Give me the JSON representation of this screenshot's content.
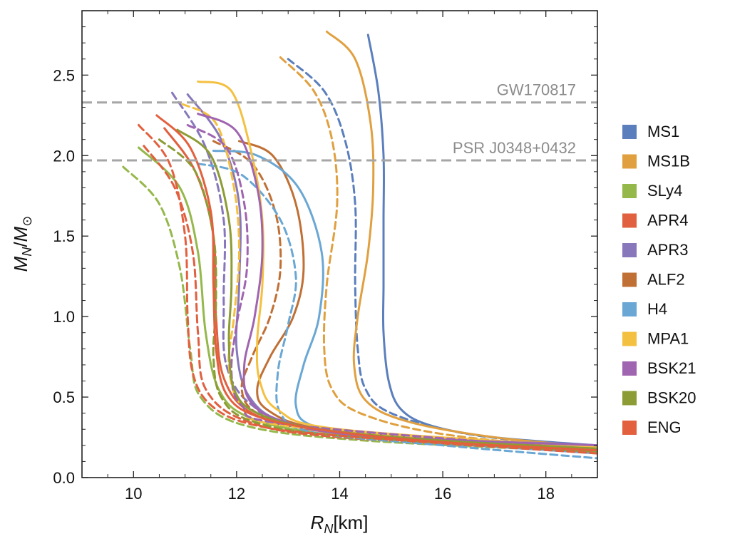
{
  "chart_data": {
    "type": "line",
    "xlabel_main": "R",
    "xlabel_sub": "N",
    "xlabel_unit": "[km]",
    "ylabel_main": "M",
    "ylabel_sub": "N",
    "ylabel_sep": "/",
    "ylabel_den": "M",
    "ylabel_den_sub": "⊙",
    "xlim": [
      9,
      19
    ],
    "ylim": [
      0,
      2.9
    ],
    "xticks": [
      10,
      12,
      14,
      16,
      18
    ],
    "yticks": [
      0.0,
      0.5,
      1.0,
      1.5,
      2.0,
      2.5
    ],
    "xtick_labels": [
      "10",
      "12",
      "14",
      "16",
      "18"
    ],
    "ytick_labels": [
      "0.0",
      "0.5",
      "1.0",
      "1.5",
      "2.0",
      "2.5"
    ],
    "legend_position": "right",
    "reference_lines": [
      {
        "label": "GW170817",
        "y": 2.33,
        "color": "#a6a6a6"
      },
      {
        "label": "PSR J0348+0432",
        "y": 1.97,
        "color": "#a6a6a6"
      }
    ],
    "series": [
      {
        "name": "MS1",
        "color": "#5b7fbd",
        "solid": [
          [
            14.55,
            2.75
          ],
          [
            14.75,
            2.4
          ],
          [
            14.85,
            2.0
          ],
          [
            14.85,
            1.6
          ],
          [
            14.85,
            1.2
          ],
          [
            14.85,
            0.9
          ],
          [
            14.95,
            0.6
          ],
          [
            15.2,
            0.42
          ],
          [
            15.8,
            0.32
          ],
          [
            17,
            0.25
          ],
          [
            19,
            0.2
          ]
        ],
        "dashed": [
          [
            13,
            2.6
          ],
          [
            13.7,
            2.4
          ],
          [
            14.1,
            2.1
          ],
          [
            14.3,
            1.7
          ],
          [
            14.3,
            1.2
          ],
          [
            14.35,
            0.8
          ],
          [
            14.5,
            0.55
          ],
          [
            15,
            0.4
          ],
          [
            16.5,
            0.27
          ],
          [
            19,
            0.18
          ]
        ]
      },
      {
        "name": "MS1B",
        "color": "#e0a040",
        "solid": [
          [
            13.75,
            2.77
          ],
          [
            14.3,
            2.6
          ],
          [
            14.6,
            2.2
          ],
          [
            14.65,
            1.8
          ],
          [
            14.55,
            1.4
          ],
          [
            14.35,
            1.0
          ],
          [
            14.28,
            0.7
          ],
          [
            14.5,
            0.48
          ],
          [
            15.3,
            0.35
          ],
          [
            17,
            0.25
          ],
          [
            19,
            0.19
          ]
        ],
        "dashed": [
          [
            12.85,
            2.61
          ],
          [
            13.5,
            2.4
          ],
          [
            13.85,
            2.1
          ],
          [
            13.95,
            1.7
          ],
          [
            13.75,
            1.2
          ],
          [
            13.7,
            0.8
          ],
          [
            13.85,
            0.55
          ],
          [
            14.4,
            0.4
          ],
          [
            16,
            0.27
          ],
          [
            19,
            0.17
          ]
        ]
      },
      {
        "name": "SLy4",
        "color": "#95b84b",
        "solid": [
          [
            10.1,
            2.05
          ],
          [
            10.9,
            1.8
          ],
          [
            11.25,
            1.4
          ],
          [
            11.4,
            0.9
          ],
          [
            11.65,
            0.55
          ],
          [
            12.2,
            0.38
          ],
          [
            13.5,
            0.28
          ],
          [
            16,
            0.22
          ],
          [
            19,
            0.19
          ]
        ],
        "dashed": [
          [
            9.8,
            1.93
          ],
          [
            10.5,
            1.7
          ],
          [
            10.9,
            1.3
          ],
          [
            11.1,
            0.8
          ],
          [
            11.3,
            0.5
          ],
          [
            12.2,
            0.32
          ],
          [
            14.5,
            0.23
          ],
          [
            19,
            0.16
          ]
        ]
      },
      {
        "name": "APR4",
        "color": "#e06040",
        "solid": [
          [
            10.6,
            2.17
          ],
          [
            11.2,
            1.9
          ],
          [
            11.55,
            1.5
          ],
          [
            11.6,
            1.0
          ],
          [
            11.75,
            0.62
          ],
          [
            12.3,
            0.4
          ],
          [
            13.6,
            0.29
          ],
          [
            16,
            0.23
          ],
          [
            19,
            0.19
          ]
        ],
        "dashed": [
          [
            10.2,
            2.06
          ],
          [
            10.8,
            1.8
          ],
          [
            11.15,
            1.4
          ],
          [
            11.25,
            0.9
          ],
          [
            11.4,
            0.55
          ],
          [
            12.2,
            0.35
          ],
          [
            14,
            0.25
          ],
          [
            19,
            0.16
          ]
        ]
      },
      {
        "name": "APR3",
        "color": "#8878bb",
        "solid": [
          [
            11.05,
            2.38
          ],
          [
            11.7,
            2.1
          ],
          [
            12.05,
            1.7
          ],
          [
            12.05,
            1.2
          ],
          [
            12.0,
            0.8
          ],
          [
            12.25,
            0.5
          ],
          [
            13,
            0.34
          ],
          [
            15,
            0.26
          ],
          [
            19,
            0.2
          ]
        ],
        "dashed": [
          [
            10.75,
            2.39
          ],
          [
            11.4,
            2.05
          ],
          [
            11.75,
            1.6
          ],
          [
            11.75,
            1.1
          ],
          [
            11.8,
            0.7
          ],
          [
            12.3,
            0.45
          ],
          [
            13.5,
            0.3
          ],
          [
            19,
            0.18
          ]
        ]
      },
      {
        "name": "ALF2",
        "color": "#c07035",
        "solid": [
          [
            12.05,
            2.09
          ],
          [
            12.7,
            2.0
          ],
          [
            13.15,
            1.7
          ],
          [
            13.3,
            1.3
          ],
          [
            13.1,
            1.0
          ],
          [
            12.65,
            0.75
          ],
          [
            12.4,
            0.55
          ],
          [
            12.6,
            0.42
          ],
          [
            13.5,
            0.31
          ],
          [
            16,
            0.23
          ],
          [
            19,
            0.19
          ]
        ],
        "dashed": [
          [
            11.55,
            2.09
          ],
          [
            12.3,
            1.95
          ],
          [
            12.75,
            1.65
          ],
          [
            12.85,
            1.3
          ],
          [
            12.65,
            1.0
          ],
          [
            12.3,
            0.75
          ],
          [
            12.1,
            0.55
          ],
          [
            12.4,
            0.4
          ],
          [
            13.5,
            0.3
          ],
          [
            19,
            0.18
          ]
        ]
      },
      {
        "name": "H4",
        "color": "#6aa7d4",
        "solid": [
          [
            11.55,
            2.03
          ],
          [
            12.4,
            2.0
          ],
          [
            13.2,
            1.8
          ],
          [
            13.65,
            1.4
          ],
          [
            13.6,
            1.0
          ],
          [
            13.3,
            0.7
          ],
          [
            13.15,
            0.45
          ],
          [
            13.5,
            0.32
          ],
          [
            15,
            0.24
          ],
          [
            19,
            0.15
          ]
        ],
        "dashed": [
          [
            11.25,
            1.95
          ],
          [
            12.1,
            1.88
          ],
          [
            12.85,
            1.6
          ],
          [
            13.15,
            1.25
          ],
          [
            13.0,
            0.95
          ],
          [
            12.8,
            0.65
          ],
          [
            12.85,
            0.4
          ],
          [
            13.5,
            0.28
          ],
          [
            16,
            0.2
          ],
          [
            19,
            0.12
          ]
        ]
      },
      {
        "name": "MPA1",
        "color": "#f4c040",
        "solid": [
          [
            11.25,
            2.46
          ],
          [
            11.9,
            2.4
          ],
          [
            12.3,
            2.0
          ],
          [
            12.5,
            1.6
          ],
          [
            12.5,
            1.2
          ],
          [
            12.4,
            0.85
          ],
          [
            12.45,
            0.6
          ],
          [
            12.8,
            0.42
          ],
          [
            14,
            0.3
          ],
          [
            19,
            0.19
          ]
        ],
        "dashed": [
          [
            10.95,
            2.32
          ],
          [
            11.6,
            2.2
          ],
          [
            11.95,
            1.8
          ],
          [
            12.05,
            1.4
          ],
          [
            11.95,
            1.0
          ],
          [
            11.85,
            0.7
          ],
          [
            12.1,
            0.45
          ],
          [
            13,
            0.32
          ],
          [
            19,
            0.17
          ]
        ]
      },
      {
        "name": "BSK21",
        "color": "#a065b0",
        "solid": [
          [
            11.25,
            2.26
          ],
          [
            12.0,
            2.15
          ],
          [
            12.4,
            1.8
          ],
          [
            12.5,
            1.4
          ],
          [
            12.35,
            1.0
          ],
          [
            12.15,
            0.7
          ],
          [
            12.25,
            0.48
          ],
          [
            12.9,
            0.35
          ],
          [
            14.5,
            0.26
          ],
          [
            19,
            0.2
          ]
        ],
        "dashed": [
          [
            11.05,
            2.19
          ],
          [
            11.8,
            2.05
          ],
          [
            12.15,
            1.7
          ],
          [
            12.2,
            1.3
          ],
          [
            12.0,
            0.95
          ],
          [
            11.9,
            0.65
          ],
          [
            12.1,
            0.45
          ],
          [
            13,
            0.33
          ],
          [
            19,
            0.17
          ]
        ]
      },
      {
        "name": "BSK20",
        "color": "#8d9c35",
        "solid": [
          [
            10.85,
            2.16
          ],
          [
            11.5,
            2.0
          ],
          [
            11.85,
            1.6
          ],
          [
            11.9,
            1.2
          ],
          [
            11.85,
            0.85
          ],
          [
            11.95,
            0.55
          ],
          [
            12.4,
            0.4
          ],
          [
            13.6,
            0.3
          ],
          [
            16,
            0.23
          ],
          [
            19,
            0.18
          ]
        ],
        "dashed": [
          [
            10.5,
            2.1
          ],
          [
            11.2,
            1.9
          ],
          [
            11.55,
            1.5
          ],
          [
            11.6,
            1.1
          ],
          [
            11.55,
            0.75
          ],
          [
            11.7,
            0.5
          ],
          [
            12.3,
            0.35
          ],
          [
            14,
            0.26
          ],
          [
            19,
            0.16
          ]
        ]
      },
      {
        "name": "ENG",
        "color": "#e3603f",
        "solid": [
          [
            10.45,
            2.25
          ],
          [
            11.1,
            2.05
          ],
          [
            11.5,
            1.65
          ],
          [
            11.55,
            1.2
          ],
          [
            11.6,
            0.8
          ],
          [
            11.8,
            0.52
          ],
          [
            12.4,
            0.38
          ],
          [
            13.8,
            0.29
          ],
          [
            16,
            0.22
          ],
          [
            19,
            0.17
          ]
        ],
        "dashed": [
          [
            10.1,
            2.19
          ],
          [
            10.7,
            1.95
          ],
          [
            11.0,
            1.5
          ],
          [
            11.05,
            1.0
          ],
          [
            11.15,
            0.65
          ],
          [
            11.5,
            0.45
          ],
          [
            12.3,
            0.33
          ],
          [
            14,
            0.26
          ],
          [
            19,
            0.15
          ]
        ]
      }
    ]
  }
}
